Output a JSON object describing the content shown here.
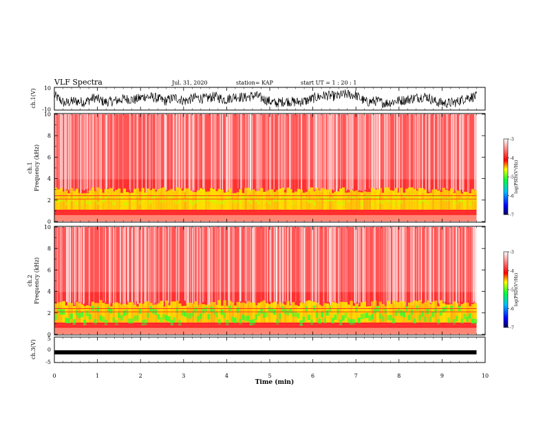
{
  "header": {
    "title": "VLF Spectra",
    "date": "Jul. 31, 2020",
    "station": "station= KAP",
    "start": "start UT =  1 : 20 : 1"
  },
  "chart_data": [
    {
      "type": "line",
      "ylabel": "ch.1(V)",
      "ylim": [
        -10,
        10
      ],
      "yticks": [
        "10",
        "-10"
      ],
      "x_range": [
        0,
        9.8
      ],
      "trace_center": [
        3,
        -4,
        -2,
        -3,
        1,
        -3,
        -2,
        0,
        -1,
        2,
        1,
        -2,
        1,
        -2,
        1,
        0,
        2,
        -1,
        2,
        1,
        3,
        -1,
        -4,
        -2,
        -3,
        -2,
        1,
        3,
        2,
        4,
        3,
        -3,
        -2,
        -4,
        -2,
        -1,
        1,
        2,
        -3,
        -4,
        -3,
        1,
        2
      ]
    },
    {
      "type": "heatmap",
      "ylabel": "ch.1 Frequency (kHz)",
      "yticks": [
        "0",
        "2",
        "4",
        "6",
        "8",
        "10"
      ],
      "ylim": [
        0,
        10
      ],
      "x_range": [
        0,
        9.8
      ],
      "colorbar": {
        "label": "log(PSD)(V²/Hz)",
        "ticks": [
          "-3",
          "-4",
          "-5",
          "-6",
          "-7"
        ],
        "range": [
          -7,
          -3
        ]
      }
    },
    {
      "type": "heatmap",
      "ylabel": "ch.2 Frequency (kHz)",
      "yticks": [
        "0",
        "2",
        "4",
        "6",
        "8",
        "10"
      ],
      "ylim": [
        0,
        10
      ],
      "x_range": [
        0,
        9.8
      ],
      "colorbar": {
        "label": "log(PSD)(V²/Hz)",
        "ticks": [
          "-3",
          "-4",
          "-5",
          "-6",
          "-7"
        ],
        "range": [
          -7,
          -3
        ]
      }
    },
    {
      "type": "line",
      "ylabel": "ch.3(V)",
      "ylim": [
        -5,
        5
      ],
      "yticks": [
        "5",
        "0",
        "-5"
      ],
      "trace_center": -1,
      "x_range": [
        0,
        9.8
      ],
      "xlabel": "Time (min)",
      "xticks": [
        "0",
        "1",
        "2",
        "3",
        "4",
        "5",
        "6",
        "7",
        "8",
        "9",
        "10"
      ],
      "xlim": [
        0,
        10
      ]
    }
  ],
  "colors": {
    "background": "#ffffff",
    "spectrum_high": "#ff2020",
    "spectrum_mid": "#ffff00",
    "spectrum_low": "#00ff40"
  }
}
